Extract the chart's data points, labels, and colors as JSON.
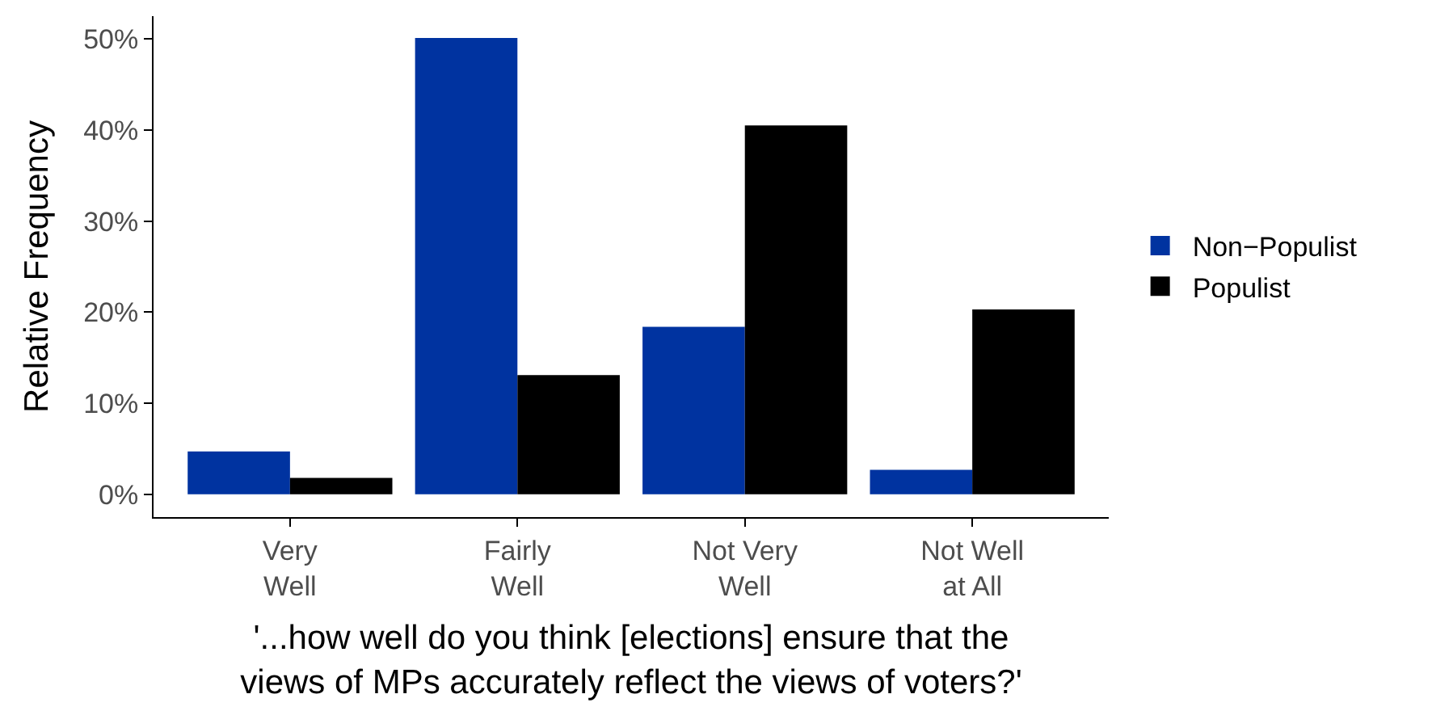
{
  "chart_data": {
    "type": "bar",
    "categories": [
      "Very\nWell",
      "Fairly\nWell",
      "Not Very\nWell",
      "Not Well\nat All"
    ],
    "series": [
      {
        "name": "Non−Populist",
        "color": "#0033a0",
        "values": [
          4.7,
          50.1,
          18.4,
          2.7
        ]
      },
      {
        "name": "Populist",
        "color": "#000000",
        "values": [
          1.8,
          13.1,
          40.5,
          20.3
        ]
      }
    ],
    "xlabel": "'...how well do you think [elections] ensure that the\nviews of MPs accurately reflect the views of voters?'",
    "ylabel": "Relative Frequency",
    "ylim": [
      -2.5,
      52.5
    ],
    "yticks": [
      {
        "value": 0,
        "label": "0%"
      },
      {
        "value": 10,
        "label": "10%"
      },
      {
        "value": 20,
        "label": "20%"
      },
      {
        "value": 30,
        "label": "30%"
      },
      {
        "value": 40,
        "label": "40%"
      },
      {
        "value": 50,
        "label": "50%"
      }
    ],
    "grid": false,
    "legend": "right"
  }
}
